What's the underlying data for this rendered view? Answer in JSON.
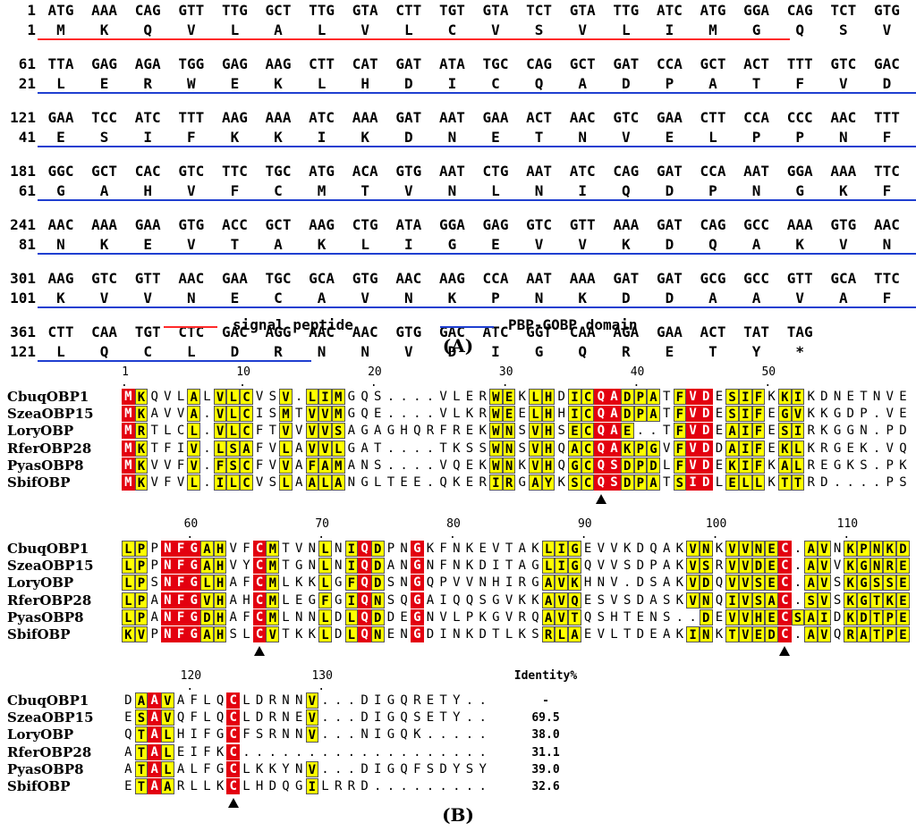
{
  "panelA": {
    "label": "(A)",
    "blocks": [
      {
        "nt_start": "1",
        "aa_start": "1",
        "codons": [
          "ATG",
          "AAA",
          "CAG",
          "GTT",
          "TTG",
          "GCT",
          "TTG",
          "GTA",
          "CTT",
          "TGT",
          "GTA",
          "TCT",
          "GTA",
          "TTG",
          "ATC",
          "ATG",
          "GGA",
          "CAG",
          "TCT",
          "GTG"
        ],
        "aa": [
          "M",
          "K",
          "Q",
          "V",
          "L",
          "A",
          "L",
          "V",
          "L",
          "C",
          "V",
          "S",
          "V",
          "L",
          "I",
          "M",
          "G",
          "Q",
          "S",
          "V"
        ]
      },
      {
        "nt_start": "61",
        "aa_start": "21",
        "codons": [
          "TTA",
          "GAG",
          "AGA",
          "TGG",
          "GAG",
          "AAG",
          "CTT",
          "CAT",
          "GAT",
          "ATA",
          "TGC",
          "CAG",
          "GCT",
          "GAT",
          "CCA",
          "GCT",
          "ACT",
          "TTT",
          "GTC",
          "GAC"
        ],
        "aa": [
          "L",
          "E",
          "R",
          "W",
          "E",
          "K",
          "L",
          "H",
          "D",
          "I",
          "C",
          "Q",
          "A",
          "D",
          "P",
          "A",
          "T",
          "F",
          "V",
          "D"
        ]
      },
      {
        "nt_start": "121",
        "aa_start": "41",
        "codons": [
          "GAA",
          "TCC",
          "ATC",
          "TTT",
          "AAG",
          "AAA",
          "ATC",
          "AAA",
          "GAT",
          "AAT",
          "GAA",
          "ACT",
          "AAC",
          "GTC",
          "GAA",
          "CTT",
          "CCA",
          "CCC",
          "AAC",
          "TTT"
        ],
        "aa": [
          "E",
          "S",
          "I",
          "F",
          "K",
          "K",
          "I",
          "K",
          "D",
          "N",
          "E",
          "T",
          "N",
          "V",
          "E",
          "L",
          "P",
          "P",
          "N",
          "F"
        ]
      },
      {
        "nt_start": "181",
        "aa_start": "61",
        "codons": [
          "GGC",
          "GCT",
          "CAC",
          "GTC",
          "TTC",
          "TGC",
          "ATG",
          "ACA",
          "GTG",
          "AAT",
          "CTG",
          "AAT",
          "ATC",
          "CAG",
          "GAT",
          "CCA",
          "AAT",
          "GGA",
          "AAA",
          "TTC"
        ],
        "aa": [
          "G",
          "A",
          "H",
          "V",
          "F",
          "C",
          "M",
          "T",
          "V",
          "N",
          "L",
          "N",
          "I",
          "Q",
          "D",
          "P",
          "N",
          "G",
          "K",
          "F"
        ]
      },
      {
        "nt_start": "241",
        "aa_start": "81",
        "codons": [
          "AAC",
          "AAA",
          "GAA",
          "GTG",
          "ACC",
          "GCT",
          "AAG",
          "CTG",
          "ATA",
          "GGA",
          "GAG",
          "GTC",
          "GTT",
          "AAA",
          "GAT",
          "CAG",
          "GCC",
          "AAA",
          "GTG",
          "AAC"
        ],
        "aa": [
          "N",
          "K",
          "E",
          "V",
          "T",
          "A",
          "K",
          "L",
          "I",
          "G",
          "E",
          "V",
          "V",
          "K",
          "D",
          "Q",
          "A",
          "K",
          "V",
          "N"
        ]
      },
      {
        "nt_start": "301",
        "aa_start": "101",
        "codons": [
          "AAG",
          "GTC",
          "GTT",
          "AAC",
          "GAA",
          "TGC",
          "GCA",
          "GTG",
          "AAC",
          "AAG",
          "CCA",
          "AAT",
          "AAA",
          "GAT",
          "GAT",
          "GCG",
          "GCC",
          "GTT",
          "GCA",
          "TTC"
        ],
        "aa": [
          "K",
          "V",
          "V",
          "N",
          "E",
          "C",
          "A",
          "V",
          "N",
          "K",
          "P",
          "N",
          "K",
          "D",
          "D",
          "A",
          "A",
          "V",
          "A",
          "F"
        ]
      },
      {
        "nt_start": "361",
        "aa_start": "121",
        "codons": [
          "CTT",
          "CAA",
          "TGT",
          "CTC",
          "GAC",
          "AGG",
          "AAC",
          "AAC",
          "GTG",
          "GAC",
          "ATC",
          "GGT",
          "CAA",
          "AGA",
          "GAA",
          "ACT",
          "TAT",
          "TAG"
        ],
        "aa": [
          "L",
          "Q",
          "C",
          "L",
          "D",
          "R",
          "N",
          "N",
          "V",
          "D",
          "I",
          "G",
          "Q",
          "R",
          "E",
          "T",
          "Y",
          "*"
        ]
      }
    ],
    "legend": {
      "signal": {
        "label": "signal peptide",
        "color": "#ff2a2a"
      },
      "domain": {
        "label": "PBP-GOBP domain",
        "color": "#1f3fd0"
      }
    }
  },
  "panelB": {
    "label": "(B)",
    "identity_header": "Identity%",
    "names": [
      "CbuqOBP1",
      "SzeaOBP15",
      "LoryOBP",
      "RferOBP28",
      "PyasOBP8",
      "SbifOBP"
    ],
    "identity": [
      "-",
      "69.5",
      "38.0",
      "31.1",
      "39.0",
      "32.6"
    ],
    "blocks": [
      {
        "ruler": [
          [
            "1",
            0
          ],
          [
            "10",
            9
          ],
          [
            "20",
            19
          ],
          [
            "30",
            29
          ],
          [
            "40",
            39
          ],
          [
            "50",
            49
          ]
        ],
        "seqs": [
          "MKQVLALVLCVSV.LIMGQS....VLERWEKLHDICQADPATFVDESIFKKIKDNETNVE",
          "MKAVVA.VLCISMTVVMGQE....VLKRWEELHHICQADPATFVDESIFEGVKKGDP.VE",
          "MRTLCL.VLCFTVVVVSAGAGHQRFREKWNSVHSECQAE..TFVDEAIFESIRKGGN.PD",
          "MKTFIV.LSAFVLAVVLGAT....TKSSWNSVHQACQAKPGVFVDDAIFEKLKRGEK.VQ",
          "MKVVFV.FSCFVVAFAMANS....VQEKWNKVHQGCQSDPDLFVDEKIFKALREGKS.PK",
          "MKVFVL.ILCVSLAALANGLTEE.QKERIRGAYKSCQSDPATSIDLELLKTTRD....PS"
        ],
        "red": [
          0,
          36,
          37,
          43,
          44
        ],
        "yellow": [
          1,
          5,
          7,
          8,
          9,
          12,
          14,
          15,
          16,
          28,
          29,
          31,
          32,
          34,
          35,
          38,
          39,
          40,
          42,
          46,
          47,
          48,
          50,
          51
        ],
        "markers": [
          36
        ]
      },
      {
        "ruler": [
          [
            "60",
            5
          ],
          [
            "70",
            15
          ],
          [
            "80",
            25
          ],
          [
            "90",
            35
          ],
          [
            "100",
            45
          ],
          [
            "110",
            55
          ]
        ],
        "seqs": [
          "LPPNFGAHVFCMTVNLNIQDPNGKFNKEVTAKLIGEVVKDQAKVNKVVNEC.AVNKPNKD",
          "LPPNFGAHVYCMTGNLNIQDANGNFNKDITAGLIGQVVSDPAKVSRVVDEC.AVVKGNRE",
          "LPSNFGLHAFCMLKKLGFQDSNGQPVVNHIRGAVKHNV.DSAKVDQVVSEC.AVSKGSSE",
          "LPANFGVHAHCMLEGFGIQNSQGAIQQSGVKKAVQESVSDASKVNQIVSAC.SVSKGTKE",
          "LPANFGDHAFCMLNNLDLQDDEGNVLPKGVRQAVTQSHTENS..DEVVHECSAIDKDTPE",
          "KVPNFGAHSLCVTKKLDLQNENGDINKDTLKSRLAEVLTDEAKINKTVEDC.AVQRATPE"
        ],
        "red": [
          3,
          4,
          5,
          10,
          18,
          22,
          50
        ],
        "yellow": [
          0,
          1,
          6,
          7,
          11,
          15,
          17,
          19,
          32,
          33,
          34,
          43,
          44,
          46,
          47,
          48,
          49,
          51,
          52,
          53,
          55,
          56,
          57,
          58,
          59
        ],
        "markers": [
          10,
          50
        ]
      },
      {
        "ruler": [
          [
            "120",
            5
          ],
          [
            "130",
            15
          ]
        ],
        "seqs": [
          "DAAVAFLQCLDRNNV...DIGQRETY..",
          "ESAVQFLQCLDRNEV...DIGQSETY..",
          "QTALHIFGCFSRNNV...NIGQK.....",
          "ATALEIFKC...................",
          "ATALALFGCLKKYNV...DIGQFSDYSY",
          "ETAARLLKCLHDQGILRRD........."
        ],
        "red": [
          2,
          8
        ],
        "yellow": [
          1,
          3,
          14
        ],
        "markers": [
          8
        ]
      }
    ]
  }
}
